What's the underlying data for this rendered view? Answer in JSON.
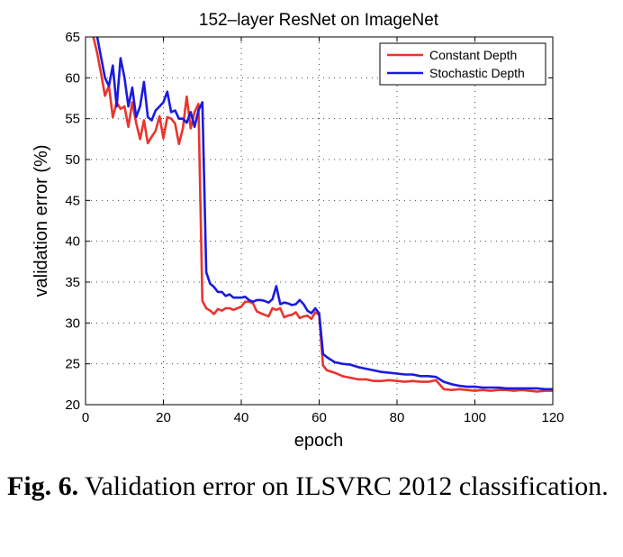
{
  "chart_data": {
    "type": "line",
    "title": "152–layer ResNet on ImageNet",
    "xlabel": "epoch",
    "ylabel": "validation error (%)",
    "xlim": [
      0,
      120
    ],
    "ylim": [
      20,
      65
    ],
    "xticks": [
      0,
      20,
      40,
      60,
      80,
      100,
      120
    ],
    "yticks": [
      20,
      25,
      30,
      35,
      40,
      45,
      50,
      55,
      60,
      65
    ],
    "grid": true,
    "legend_position": "top-right",
    "series": [
      {
        "name": "Constant Depth",
        "color": "#e8352e",
        "x": [
          2,
          3,
          4,
          5,
          6,
          7,
          8,
          9,
          10,
          11,
          12,
          13,
          14,
          15,
          16,
          17,
          18,
          19,
          20,
          21,
          22,
          23,
          24,
          25,
          26,
          27,
          28,
          29,
          30,
          31,
          32,
          33,
          34,
          35,
          36,
          37,
          38,
          39,
          40,
          41,
          42,
          43,
          44,
          45,
          46,
          47,
          48,
          49,
          50,
          51,
          52,
          53,
          54,
          55,
          56,
          57,
          58,
          59,
          60,
          61,
          62,
          64,
          66,
          68,
          70,
          72,
          74,
          76,
          78,
          80,
          82,
          84,
          86,
          88,
          90,
          92,
          94,
          96,
          98,
          100,
          102,
          104,
          106,
          108,
          110,
          112,
          114,
          116,
          118,
          120
        ],
        "y": [
          65,
          63,
          60.5,
          57.8,
          59,
          55.2,
          57,
          56.2,
          56.5,
          54,
          57,
          54.5,
          52.5,
          54.8,
          52,
          52.8,
          53.5,
          55.3,
          52.6,
          55.2,
          55,
          54.4,
          51.9,
          53.8,
          57.7,
          53.8,
          55.8,
          56.8,
          32.7,
          31.8,
          31.5,
          31.1,
          31.7,
          31.5,
          31.8,
          31.8,
          31.6,
          31.8,
          32,
          32.6,
          32.6,
          32.4,
          31.4,
          31.2,
          31,
          30.8,
          31.8,
          31.6,
          31.8,
          30.7,
          30.9,
          31,
          31.3,
          30.6,
          30.8,
          30.9,
          30.5,
          31.3,
          31,
          24.8,
          24.2,
          23.9,
          23.5,
          23.3,
          23.1,
          23.1,
          22.9,
          22.9,
          23,
          22.9,
          22.8,
          22.9,
          22.8,
          22.8,
          23,
          21.9,
          21.8,
          21.9,
          21.8,
          21.7,
          21.8,
          21.7,
          21.8,
          21.8,
          21.7,
          21.8,
          21.7,
          21.6,
          21.7,
          21.7
        ]
      },
      {
        "name": "Stochastic Depth",
        "color": "#1a1ae0",
        "x": [
          3,
          4,
          5,
          6,
          7,
          8,
          9,
          10,
          11,
          12,
          13,
          14,
          15,
          16,
          17,
          18,
          19,
          20,
          21,
          22,
          23,
          24,
          25,
          26,
          27,
          28,
          29,
          30,
          31,
          32,
          33,
          34,
          35,
          36,
          37,
          38,
          39,
          40,
          41,
          42,
          43,
          44,
          45,
          46,
          47,
          48,
          49,
          50,
          51,
          52,
          53,
          54,
          55,
          56,
          57,
          58,
          59,
          60,
          61,
          62,
          64,
          66,
          68,
          70,
          72,
          74,
          76,
          78,
          80,
          82,
          84,
          86,
          88,
          90,
          92,
          94,
          96,
          98,
          100,
          102,
          104,
          106,
          108,
          110,
          112,
          114,
          116,
          118,
          120
        ],
        "y": [
          65,
          62.5,
          60,
          59,
          61.5,
          56.5,
          62.4,
          60,
          56.5,
          58.8,
          55.2,
          56.5,
          59.5,
          55.2,
          54.8,
          56,
          56.5,
          57,
          58.3,
          55.8,
          56,
          55,
          55,
          54.5,
          55.8,
          54,
          56,
          57,
          36.2,
          34.8,
          34.4,
          33.8,
          33.8,
          33.3,
          33.5,
          33.1,
          33.1,
          33.1,
          33.2,
          32.8,
          32.6,
          32.8,
          32.8,
          32.7,
          32.5,
          32.9,
          34.5,
          32.3,
          32.5,
          32.4,
          32.2,
          32.3,
          32.8,
          32.3,
          31.5,
          31.2,
          31.8,
          31.2,
          26.2,
          25.8,
          25.2,
          25,
          24.9,
          24.6,
          24.4,
          24.2,
          24,
          23.9,
          23.8,
          23.7,
          23.7,
          23.5,
          23.5,
          23.4,
          22.8,
          22.5,
          22.3,
          22.2,
          22.2,
          22.1,
          22.1,
          22.1,
          22,
          22,
          22,
          22,
          22,
          21.9,
          21.9
        ]
      }
    ]
  },
  "caption": {
    "label": "Fig. 6.",
    "text": "Validation error on ILSVRC 2012 classification."
  }
}
